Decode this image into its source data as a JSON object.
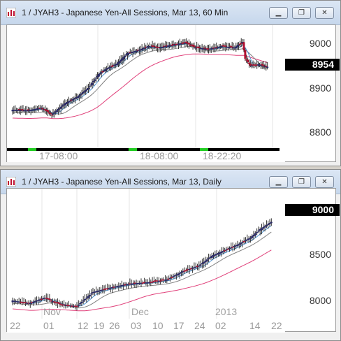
{
  "windows": [
    {
      "title": "1 / JYAH3 - Japanese Yen-All Sessions, Mar 13, 60 Min",
      "price_label": "8954",
      "y_ticks": [
        "9000",
        "8900",
        "8800"
      ],
      "x_ticks": [
        "17-08:00",
        "18-08:00",
        "18-22:20"
      ],
      "colors": {
        "up": "#2a2a6a",
        "down": "#b01030",
        "ma_fast": "#4a90d0",
        "ma_mid": "#808080",
        "ma_slow": "#e0407a",
        "session_bar": "#000000",
        "session_mark": "#22cc22"
      }
    },
    {
      "title": "1 / JYAH3 - Japanese Yen-All Sessions, Mar 13, Daily",
      "price_label": "9000",
      "y_ticks": [
        "9000",
        "8500",
        "8000"
      ],
      "x_ticks": [
        "22",
        "01",
        "12",
        "19",
        "26",
        "03",
        "10",
        "17",
        "24",
        "02",
        "14",
        "22"
      ],
      "month_labels": [
        "Nov",
        "Dec",
        "2013"
      ],
      "colors": {
        "up": "#2a2a6a",
        "down": "#b01030",
        "ma_fast": "#4a90d0",
        "ma_mid": "#808080",
        "ma_slow": "#e0407a"
      }
    }
  ],
  "controls": {
    "minimize": "minimize-icon",
    "restore": "restore-icon",
    "close": "close-icon"
  }
}
